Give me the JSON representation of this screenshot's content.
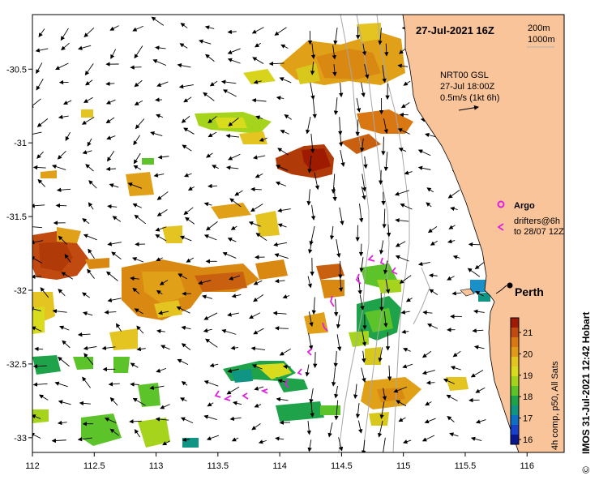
{
  "header": {
    "date_label": "27-Jul-2021 16Z",
    "scale_200": "200m",
    "scale_1000": "1000m"
  },
  "velocity": {
    "line1": "NRT00 GSL",
    "line2": "27-Jul 18:00Z",
    "line3": "0.5m/s (1kt 6h)"
  },
  "legend": {
    "argo": "Argo",
    "drifters_line1": "drifters@6h",
    "drifters_line2": "to 28/07 12Z"
  },
  "city": {
    "name": "Perth",
    "lon": 115.86,
    "lat": -31.95
  },
  "colorbar": {
    "ticks": [
      "21",
      "20",
      "19",
      "18",
      "17",
      "16"
    ],
    "caption": "4h comp, p50, All Sats",
    "colors": [
      "#9e1a00",
      "#c04a10",
      "#d97812",
      "#e09a18",
      "#e3c420",
      "#d8dc1c",
      "#a6d41c",
      "#5cc42a",
      "#1ea24a",
      "#109484",
      "#0e70c4",
      "#1840c8",
      "#0a1890"
    ]
  },
  "credit": "IMOS 31-Jul-2021 12:42 Hobart",
  "copyright": "©",
  "axes": {
    "x_ticks": [
      "112",
      "112.5",
      "113",
      "113.5",
      "114",
      "114.5",
      "115",
      "115.5",
      "116"
    ],
    "y_ticks": [
      "-30.5",
      "-31",
      "-31.5",
      "-32",
      "-32.5",
      "-33"
    ],
    "x_range": [
      112.0,
      116.3
    ],
    "y_range": [
      -33.1,
      -30.13
    ]
  },
  "colors": {
    "land": "#f9c49a",
    "argo": "#e020e0",
    "drifter": "#e020e0",
    "bathy": "#a8a8a8"
  }
}
